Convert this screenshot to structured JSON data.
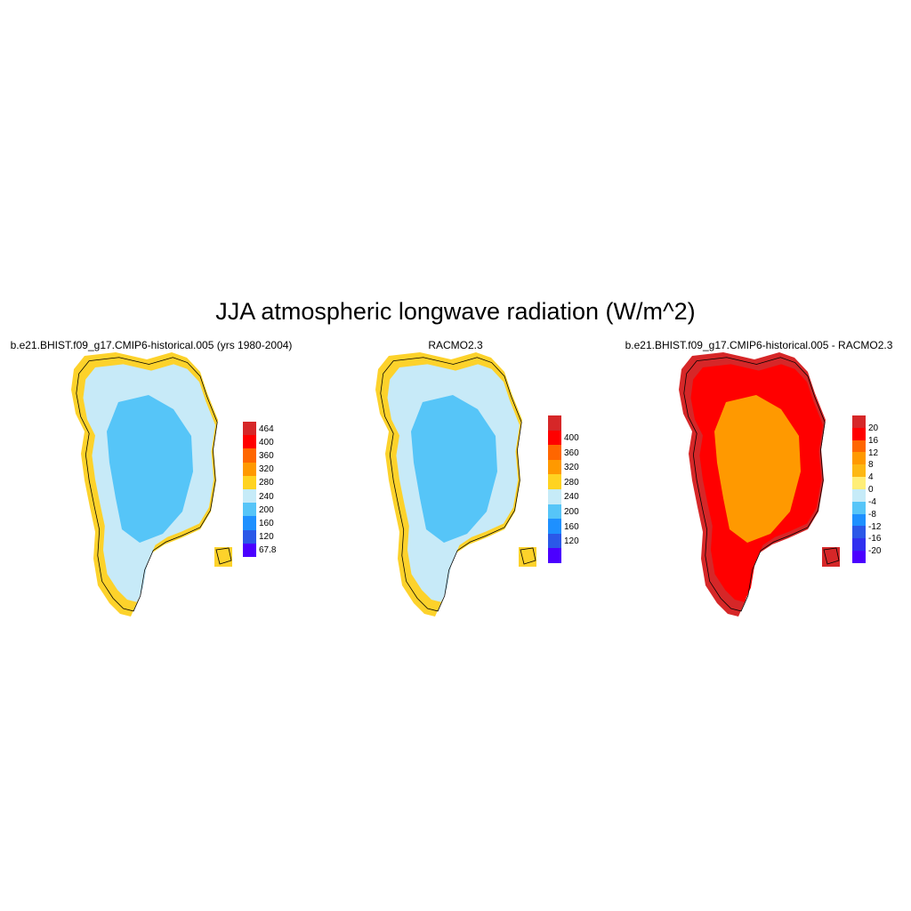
{
  "title": "JJA atmospheric longwave radiation (W/m^2)",
  "panels": [
    {
      "title": "b.e21.BHIST.f09_g17.CMIP6-historical.005 (yrs 1980-2004)",
      "interior_color": "#56C5F8",
      "ring_color": "#C7EAF8",
      "coast_color": "#FDD22B",
      "colorbar": {
        "labels": [
          "464",
          "400",
          "360",
          "320",
          "280",
          "240",
          "200",
          "160",
          "120",
          "67.8"
        ],
        "colors": [
          "#D62728",
          "#FF0000",
          "#FF6600",
          "#FF9900",
          "#FFD321",
          "#C6EBF8",
          "#56C5F8",
          "#1E90FF",
          "#2B58E8",
          "#4B00FF"
        ]
      }
    },
    {
      "title": "RACMO2.3",
      "interior_color": "#56C5F8",
      "ring_color": "#C7EAF8",
      "coast_color": "#FDD22B",
      "colorbar": {
        "labels": [
          "400",
          "360",
          "320",
          "280",
          "240",
          "200",
          "160",
          "120"
        ],
        "colors": [
          "#D62728",
          "#FF0000",
          "#FF6600",
          "#FF9900",
          "#FFD321",
          "#C6EBF8",
          "#56C5F8",
          "#1E90FF",
          "#2B58E8",
          "#4B00FF"
        ]
      }
    },
    {
      "title": "b.e21.BHIST.f09_g17.CMIP6-historical.005 - RACMO2.3",
      "interior_color": "#FF9900",
      "ring_color": "#FF0000",
      "coast_color": "#D62728",
      "colorbar": {
        "labels": [
          "20",
          "16",
          "12",
          "8",
          "4",
          "0",
          "-4",
          "-8",
          "-12",
          "-16",
          "-20"
        ],
        "colors": [
          "#D62728",
          "#FF0000",
          "#FF6600",
          "#FF9900",
          "#FDB813",
          "#FFEE77",
          "#C6EBF8",
          "#56C5F8",
          "#1E90FF",
          "#2B58E8",
          "#3030F0",
          "#4B00FF"
        ]
      }
    }
  ]
}
